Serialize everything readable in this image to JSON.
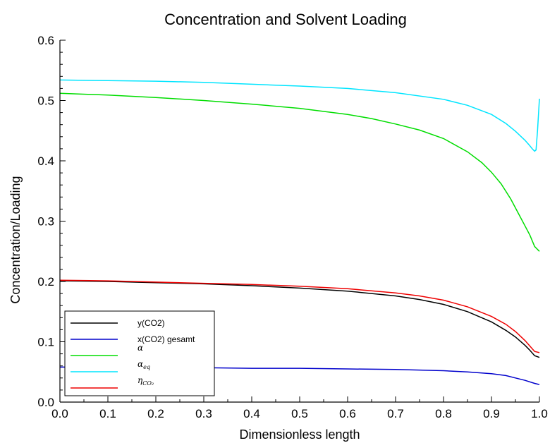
{
  "chart_data": {
    "type": "line",
    "title": "Concentration and Solvent Loading",
    "xlabel": "Dimensionless length",
    "ylabel": "Concentration/Loading",
    "xlim": [
      0,
      1
    ],
    "ylim": [
      0,
      0.6
    ],
    "xticks": [
      "0.0",
      "0.1",
      "0.2",
      "0.3",
      "0.4",
      "0.5",
      "0.6",
      "0.7",
      "0.8",
      "0.9",
      "1.0"
    ],
    "yticks": [
      "0.0",
      "0.1",
      "0.2",
      "0.3",
      "0.4",
      "0.5",
      "0.6"
    ],
    "grid": false,
    "legend_position": "bottom-left",
    "series": [
      {
        "name": "y(CO2)",
        "color": "#000000",
        "x": [
          0,
          0.1,
          0.2,
          0.3,
          0.4,
          0.5,
          0.6,
          0.7,
          0.75,
          0.8,
          0.85,
          0.9,
          0.93,
          0.95,
          0.97,
          0.98,
          0.99,
          1.0
        ],
        "y": [
          0.201,
          0.2,
          0.198,
          0.196,
          0.193,
          0.189,
          0.184,
          0.176,
          0.17,
          0.162,
          0.15,
          0.133,
          0.119,
          0.108,
          0.094,
          0.086,
          0.077,
          0.074
        ]
      },
      {
        "name": "x(CO2) gesamt",
        "color": "#0000cc",
        "x": [
          0,
          0.1,
          0.2,
          0.3,
          0.4,
          0.5,
          0.6,
          0.7,
          0.8,
          0.85,
          0.9,
          0.93,
          0.95,
          0.97,
          0.99,
          1.0
        ],
        "y": [
          0.058,
          0.058,
          0.057,
          0.057,
          0.056,
          0.056,
          0.055,
          0.054,
          0.052,
          0.05,
          0.047,
          0.044,
          0.04,
          0.036,
          0.031,
          0.029
        ]
      },
      {
        "name": "α",
        "color": "#00dd00",
        "x": [
          0,
          0.1,
          0.2,
          0.3,
          0.4,
          0.5,
          0.6,
          0.65,
          0.7,
          0.75,
          0.8,
          0.85,
          0.88,
          0.9,
          0.92,
          0.94,
          0.96,
          0.97,
          0.98,
          0.99,
          1.0
        ],
        "y": [
          0.512,
          0.509,
          0.505,
          0.5,
          0.494,
          0.487,
          0.477,
          0.47,
          0.461,
          0.451,
          0.437,
          0.415,
          0.397,
          0.381,
          0.362,
          0.337,
          0.307,
          0.292,
          0.277,
          0.258,
          0.25
        ]
      },
      {
        "name": "α",
        "subscript": "eq",
        "color": "#00e5ff",
        "x": [
          0,
          0.1,
          0.2,
          0.3,
          0.4,
          0.5,
          0.6,
          0.7,
          0.8,
          0.85,
          0.9,
          0.93,
          0.95,
          0.97,
          0.98,
          0.985,
          0.99,
          0.993,
          0.996,
          1.0
        ],
        "y": [
          0.534,
          0.533,
          0.532,
          0.53,
          0.527,
          0.524,
          0.52,
          0.513,
          0.502,
          0.492,
          0.477,
          0.462,
          0.449,
          0.434,
          0.425,
          0.42,
          0.416,
          0.418,
          0.45,
          0.503
        ]
      },
      {
        "name": "η",
        "subscript": "CO₂",
        "color": "#ee0000",
        "x": [
          0,
          0.1,
          0.2,
          0.3,
          0.4,
          0.5,
          0.6,
          0.7,
          0.75,
          0.8,
          0.85,
          0.9,
          0.93,
          0.95,
          0.97,
          0.98,
          0.99,
          1.0
        ],
        "y": [
          0.202,
          0.201,
          0.199,
          0.197,
          0.195,
          0.192,
          0.188,
          0.181,
          0.176,
          0.169,
          0.158,
          0.142,
          0.129,
          0.117,
          0.102,
          0.093,
          0.084,
          0.082
        ]
      }
    ]
  }
}
